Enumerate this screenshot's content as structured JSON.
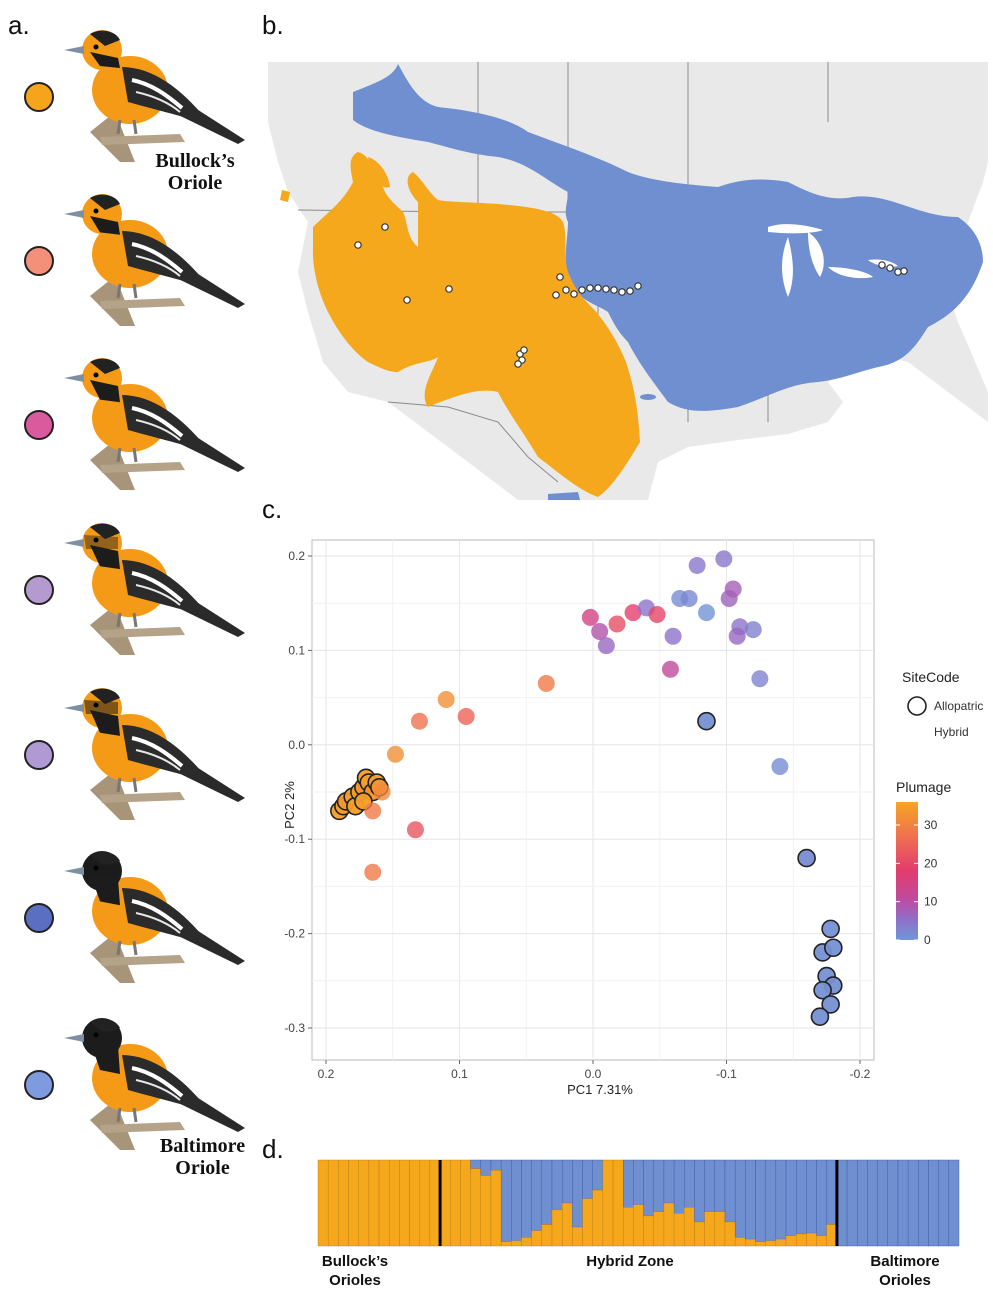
{
  "panels": {
    "a": "a.",
    "b": "b.",
    "c": "c.",
    "d": "d."
  },
  "species": {
    "bullocks_line1": "Bullock’s",
    "bullocks_line2": "Oriole",
    "baltimore_line1": "Baltimore",
    "baltimore_line2": "Oriole"
  },
  "colors": {
    "bullocks_orange": "#F5A81C",
    "baltimore_blue": "#6F8FD0",
    "background_land": "#E9E9E9",
    "water": "#FFFFFF",
    "swatch_1": "#F7A41D",
    "swatch_2": "#F4907A",
    "swatch_3": "#D95B9E",
    "swatch_4": "#B59AD0",
    "swatch_5": "#B09AD4",
    "swatch_6": "#5A6FC2",
    "swatch_7": "#7F9BDF"
  },
  "icons": [
    "oriole-illustration",
    "map-sample-dot"
  ],
  "chart_data": {
    "type": "scatter",
    "xlabel": "PC1 7.31%",
    "ylabel": "PC2 2%",
    "xlim": [
      0.2,
      -0.2
    ],
    "ylim": [
      -0.3,
      0.2
    ],
    "xticks": [
      "0.2",
      "0.1",
      "0.0",
      "-0.1",
      "-0.2"
    ],
    "yticks": [
      "0.2",
      "0.1",
      "0.0",
      "-0.1",
      "-0.2",
      "-0.3"
    ],
    "grid": true,
    "legend_shape": {
      "title": "SiteCode",
      "entries": [
        "Allopatric",
        "Hybrid"
      ]
    },
    "legend_color": {
      "title": "Plumage",
      "ticks": [
        "30",
        "20",
        "10",
        "0"
      ],
      "range": [
        0,
        36
      ]
    },
    "points": [
      {
        "x": 0.19,
        "y": -0.07,
        "plumage": 35,
        "site": "Allopatric"
      },
      {
        "x": 0.187,
        "y": -0.065,
        "plumage": 35,
        "site": "Allopatric"
      },
      {
        "x": 0.185,
        "y": -0.06,
        "plumage": 34,
        "site": "Allopatric"
      },
      {
        "x": 0.18,
        "y": -0.055,
        "plumage": 35,
        "site": "Allopatric"
      },
      {
        "x": 0.178,
        "y": -0.065,
        "plumage": 35,
        "site": "Allopatric"
      },
      {
        "x": 0.175,
        "y": -0.05,
        "plumage": 35,
        "site": "Allopatric"
      },
      {
        "x": 0.172,
        "y": -0.045,
        "plumage": 34,
        "site": "Allopatric"
      },
      {
        "x": 0.17,
        "y": -0.035,
        "plumage": 35,
        "site": "Allopatric"
      },
      {
        "x": 0.168,
        "y": -0.04,
        "plumage": 35,
        "site": "Allopatric"
      },
      {
        "x": 0.165,
        "y": -0.05,
        "plumage": 34,
        "site": "Allopatric"
      },
      {
        "x": 0.162,
        "y": -0.04,
        "plumage": 35,
        "site": "Allopatric"
      },
      {
        "x": 0.172,
        "y": -0.06,
        "plumage": 35,
        "site": "Allopatric"
      },
      {
        "x": 0.16,
        "y": -0.045,
        "plumage": 34,
        "site": "Allopatric"
      },
      {
        "x": 0.165,
        "y": -0.07,
        "plumage": 30,
        "site": "Hybrid"
      },
      {
        "x": 0.158,
        "y": -0.05,
        "plumage": 32,
        "site": "Hybrid"
      },
      {
        "x": 0.165,
        "y": -0.135,
        "plumage": 30,
        "site": "Hybrid"
      },
      {
        "x": 0.133,
        "y": -0.09,
        "plumage": 25,
        "site": "Hybrid"
      },
      {
        "x": 0.148,
        "y": -0.01,
        "plumage": 33,
        "site": "Hybrid"
      },
      {
        "x": 0.13,
        "y": 0.025,
        "plumage": 29,
        "site": "Hybrid"
      },
      {
        "x": 0.11,
        "y": 0.048,
        "plumage": 33,
        "site": "Hybrid"
      },
      {
        "x": 0.095,
        "y": 0.03,
        "plumage": 27,
        "site": "Hybrid"
      },
      {
        "x": 0.035,
        "y": 0.065,
        "plumage": 30,
        "site": "Hybrid"
      },
      {
        "x": 0.002,
        "y": 0.135,
        "plumage": 20,
        "site": "Hybrid"
      },
      {
        "x": -0.005,
        "y": 0.12,
        "plumage": 16,
        "site": "Hybrid"
      },
      {
        "x": -0.01,
        "y": 0.105,
        "plumage": 12,
        "site": "Hybrid"
      },
      {
        "x": -0.018,
        "y": 0.128,
        "plumage": 24,
        "site": "Hybrid"
      },
      {
        "x": -0.03,
        "y": 0.14,
        "plumage": 22,
        "site": "Hybrid"
      },
      {
        "x": -0.04,
        "y": 0.145,
        "plumage": 10,
        "site": "Hybrid"
      },
      {
        "x": -0.048,
        "y": 0.138,
        "plumage": 23,
        "site": "Hybrid"
      },
      {
        "x": -0.06,
        "y": 0.115,
        "plumage": 10,
        "site": "Hybrid"
      },
      {
        "x": -0.058,
        "y": 0.08,
        "plumage": 18,
        "site": "Hybrid"
      },
      {
        "x": -0.065,
        "y": 0.155,
        "plumage": 3,
        "site": "Hybrid"
      },
      {
        "x": -0.072,
        "y": 0.155,
        "plumage": 4,
        "site": "Hybrid"
      },
      {
        "x": -0.078,
        "y": 0.19,
        "plumage": 9,
        "site": "Hybrid"
      },
      {
        "x": -0.085,
        "y": 0.14,
        "plumage": 1,
        "site": "Hybrid"
      },
      {
        "x": -0.098,
        "y": 0.197,
        "plumage": 9,
        "site": "Hybrid"
      },
      {
        "x": -0.102,
        "y": 0.155,
        "plumage": 13,
        "site": "Hybrid"
      },
      {
        "x": -0.105,
        "y": 0.165,
        "plumage": 14,
        "site": "Hybrid"
      },
      {
        "x": -0.11,
        "y": 0.125,
        "plumage": 10,
        "site": "Hybrid"
      },
      {
        "x": -0.108,
        "y": 0.115,
        "plumage": 12,
        "site": "Hybrid"
      },
      {
        "x": -0.12,
        "y": 0.122,
        "plumage": 6,
        "site": "Hybrid"
      },
      {
        "x": -0.125,
        "y": 0.07,
        "plumage": 5,
        "site": "Hybrid"
      },
      {
        "x": -0.085,
        "y": 0.025,
        "plumage": 2,
        "site": "Allopatric"
      },
      {
        "x": -0.14,
        "y": -0.023,
        "plumage": 3,
        "site": "Hybrid"
      },
      {
        "x": -0.16,
        "y": -0.12,
        "plumage": 3,
        "site": "Allopatric"
      },
      {
        "x": -0.178,
        "y": -0.195,
        "plumage": 2,
        "site": "Allopatric"
      },
      {
        "x": -0.172,
        "y": -0.22,
        "plumage": 2,
        "site": "Allopatric"
      },
      {
        "x": -0.18,
        "y": -0.215,
        "plumage": 2,
        "site": "Allopatric"
      },
      {
        "x": -0.175,
        "y": -0.245,
        "plumage": 2,
        "site": "Allopatric"
      },
      {
        "x": -0.18,
        "y": -0.255,
        "plumage": 2,
        "site": "Allopatric"
      },
      {
        "x": -0.172,
        "y": -0.26,
        "plumage": 2,
        "site": "Allopatric"
      },
      {
        "x": -0.178,
        "y": -0.275,
        "plumage": 2,
        "site": "Allopatric"
      },
      {
        "x": -0.17,
        "y": -0.288,
        "plumage": 2,
        "site": "Allopatric"
      }
    ]
  },
  "structure": {
    "group_labels": [
      [
        "Bullock’s",
        "Orioles"
      ],
      [
        "Hybrid Zone"
      ],
      [
        "Baltimore",
        "Orioles"
      ]
    ],
    "orange_fraction": [
      1,
      1,
      1,
      1,
      1,
      1,
      1,
      1,
      1,
      1,
      1,
      1,
      1,
      1,
      1,
      0.9,
      0.82,
      0.88,
      0.05,
      0.06,
      0.1,
      0.18,
      0.25,
      0.42,
      0.5,
      0.22,
      0.55,
      0.65,
      1,
      1,
      0.45,
      0.48,
      0.35,
      0.4,
      0.5,
      0.38,
      0.45,
      0.28,
      0.4,
      0.4,
      0.28,
      0.1,
      0.08,
      0.05,
      0.06,
      0.08,
      0.12,
      0.14,
      0.15,
      0.12,
      0.25,
      0,
      0,
      0,
      0,
      0,
      0,
      0,
      0,
      0,
      0,
      0,
      0
    ],
    "separators_after": [
      11,
      50
    ]
  }
}
